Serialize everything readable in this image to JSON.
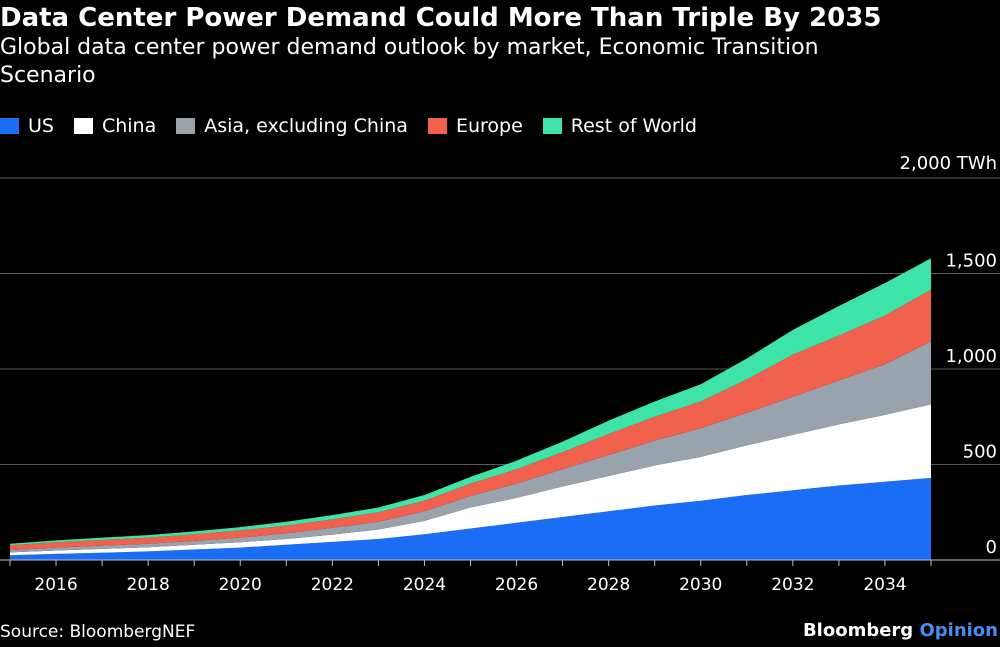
{
  "title": "Data Center Power Demand Could More Than Triple By 2035",
  "subtitle": "Global data center power demand outlook by market, Economic Transition Scenario",
  "source": "Source: BloombergNEF",
  "brand": {
    "name": "Bloomberg",
    "suffix": "Opinion"
  },
  "colors": {
    "background": "#000000",
    "US": "#1a6df5",
    "China": "#ffffff",
    "Asia": "#99a3ae",
    "Europe": "#f2604e",
    "RestOfWorld": "#3ee3a8",
    "grid": "#595959"
  },
  "chart_data": {
    "type": "area",
    "stacked": true,
    "x": [
      2015,
      2016,
      2017,
      2018,
      2019,
      2020,
      2021,
      2022,
      2023,
      2024,
      2025,
      2026,
      2027,
      2028,
      2029,
      2030,
      2031,
      2032,
      2033,
      2034,
      2035
    ],
    "series": [
      {
        "name": "US",
        "color": "#1a6df5",
        "values": [
          25,
          32,
          38,
          45,
          55,
          65,
          80,
          95,
          110,
          135,
          165,
          195,
          225,
          255,
          285,
          310,
          340,
          365,
          390,
          410,
          430
        ]
      },
      {
        "name": "China",
        "color": "#ffffff",
        "values": [
          15,
          18,
          20,
          22,
          25,
          28,
          30,
          38,
          50,
          70,
          110,
          130,
          160,
          185,
          210,
          230,
          260,
          290,
          320,
          350,
          385
        ]
      },
      {
        "name": "Asia, excluding China",
        "color": "#99a3ae",
        "values": [
          12,
          15,
          17,
          18,
          20,
          24,
          30,
          35,
          40,
          50,
          60,
          75,
          90,
          110,
          130,
          150,
          170,
          200,
          230,
          265,
          330
        ]
      },
      {
        "name": "Europe",
        "color": "#f2604e",
        "values": [
          25,
          28,
          30,
          32,
          35,
          38,
          40,
          45,
          50,
          55,
          65,
          75,
          90,
          110,
          125,
          140,
          175,
          220,
          235,
          255,
          270
        ]
      },
      {
        "name": "Rest of World",
        "color": "#3ee3a8",
        "values": [
          8,
          10,
          12,
          13,
          15,
          17,
          20,
          22,
          25,
          30,
          35,
          45,
          55,
          70,
          80,
          90,
          110,
          130,
          155,
          170,
          165
        ]
      }
    ],
    "ylabel": "",
    "xlabel": "",
    "ylim": [
      0,
      2000
    ],
    "yticks": [
      0,
      500,
      1000,
      1500,
      2000
    ],
    "ytick_labels": [
      "0",
      "500",
      "1,000",
      "1,500",
      "2,000 TWh"
    ],
    "xticks": [
      2016,
      2018,
      2020,
      2022,
      2024,
      2026,
      2028,
      2030,
      2032,
      2034
    ],
    "xtick_labels": [
      "2016",
      "2018",
      "2020",
      "2022",
      "2024",
      "2026",
      "2028",
      "2030",
      "2032",
      "2034"
    ],
    "grid": true,
    "legend_position": "top-left"
  }
}
